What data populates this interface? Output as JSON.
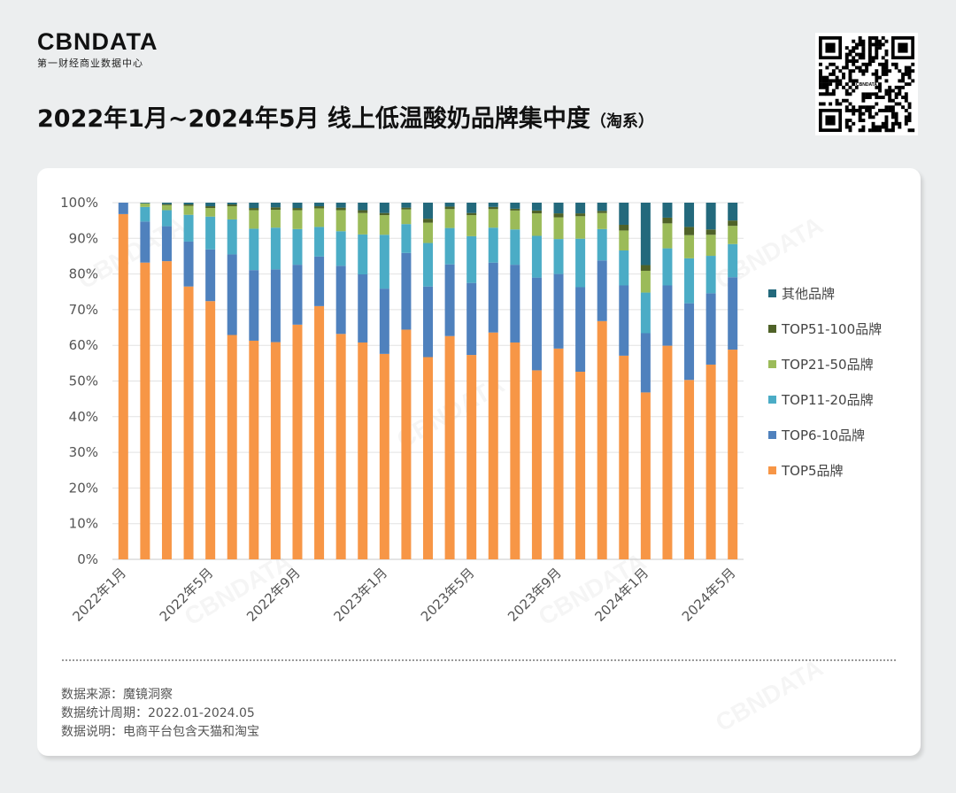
{
  "header": {
    "logo_text": "CBNDATA",
    "logo_subtitle": "第一财经商业数据中心",
    "title": "2022年1月~2024年5月 线上低温酸奶品牌集中度",
    "title_suffix": "（淘系）",
    "qr_label": "CBNDATA"
  },
  "notes": {
    "source": "数据来源：魔镜洞察",
    "period": "数据统计周期：2022.01-2024.05",
    "description": "数据说明：电商平台包含天猫和淘宝"
  },
  "chart_data": {
    "type": "bar",
    "stacked": true,
    "categories": [
      "2022年1月",
      "2022年2月",
      "2022年3月",
      "2022年4月",
      "2022年5月",
      "2022年6月",
      "2022年7月",
      "2022年8月",
      "2022年9月",
      "2022年10月",
      "2022年11月",
      "2022年12月",
      "2023年1月",
      "2023年2月",
      "2023年3月",
      "2023年4月",
      "2023年5月",
      "2023年6月",
      "2023年7月",
      "2023年8月",
      "2023年9月",
      "2023年10月",
      "2023年11月",
      "2023年12月",
      "2024年1月",
      "2024年2月",
      "2024年3月",
      "2024年4月",
      "2024年5月"
    ],
    "x_tick_labels": [
      {
        "index": 0,
        "label": "2022年1月"
      },
      {
        "index": 4,
        "label": "2022年5月"
      },
      {
        "index": 8,
        "label": "2022年9月"
      },
      {
        "index": 12,
        "label": "2023年1月"
      },
      {
        "index": 16,
        "label": "2023年5月"
      },
      {
        "index": 20,
        "label": "2023年9月"
      },
      {
        "index": 24,
        "label": "2024年1月"
      },
      {
        "index": 28,
        "label": "2024年5月"
      }
    ],
    "y_ticks": [
      "0%",
      "10%",
      "20%",
      "30%",
      "40%",
      "50%",
      "60%",
      "70%",
      "80%",
      "90%",
      "100%"
    ],
    "ylim": [
      0,
      100
    ],
    "series": [
      {
        "name": "TOP5品牌",
        "color": "#f79646",
        "values": [
          96.8,
          83.2,
          83.6,
          76.5,
          72.4,
          62.9,
          61.3,
          60.9,
          65.8,
          71.0,
          63.2,
          60.8,
          57.6,
          64.4,
          56.7,
          62.6,
          57.3,
          63.6,
          60.8,
          53.0,
          59.1,
          52.6,
          66.8,
          57.1,
          46.8,
          59.9,
          50.3,
          54.6,
          58.8
        ]
      },
      {
        "name": "TOP6-10品牌",
        "color": "#4f81bd",
        "values": [
          3.2,
          11.5,
          9.8,
          12.6,
          14.5,
          22.6,
          19.8,
          20.4,
          16.8,
          13.9,
          19.1,
          19.1,
          18.3,
          21.5,
          19.8,
          20.1,
          20.2,
          19.6,
          21.8,
          26.0,
          20.9,
          23.7,
          17.0,
          19.7,
          16.6,
          16.9,
          21.5,
          20.0,
          20.3
        ]
      },
      {
        "name": "TOP11-20品牌",
        "color": "#4bacc6",
        "values": [
          0,
          4.1,
          4.5,
          7.5,
          9.2,
          9.8,
          11.6,
          11.7,
          10.0,
          8.3,
          9.7,
          11.2,
          15.1,
          8.1,
          12.2,
          10.2,
          13.1,
          9.8,
          9.9,
          11.7,
          9.8,
          13.6,
          8.8,
          9.8,
          11.4,
          10.4,
          12.6,
          10.5,
          9.3
        ]
      },
      {
        "name": "TOP21-50品牌",
        "color": "#9bbb59",
        "values": [
          0,
          1.0,
          1.4,
          2.5,
          2.4,
          3.7,
          5.2,
          5.0,
          5.3,
          5.2,
          5.9,
          6.0,
          5.5,
          4.1,
          5.7,
          5.3,
          5.9,
          5.2,
          5.3,
          6.3,
          6.1,
          6.3,
          4.5,
          5.6,
          6.1,
          7.0,
          6.5,
          5.9,
          5.1
        ]
      },
      {
        "name": "TOP51-100品牌",
        "color": "#4f6228",
        "values": [
          0,
          0,
          0.3,
          0.4,
          0.5,
          0.5,
          0.6,
          0.7,
          0.6,
          0.6,
          0.7,
          0.8,
          0.6,
          0.5,
          1.1,
          0.7,
          0.6,
          0.6,
          0.5,
          0.8,
          1.1,
          0.8,
          0.6,
          1.6,
          1.6,
          1.6,
          2.3,
          1.5,
          1.5
        ]
      },
      {
        "name": "其他品牌",
        "color": "#23697c",
        "values": [
          0,
          0.2,
          0.4,
          0.5,
          1.0,
          0.5,
          1.5,
          1.3,
          1.5,
          1.0,
          1.4,
          2.1,
          2.9,
          1.4,
          4.5,
          1.1,
          2.9,
          1.2,
          1.7,
          2.2,
          3.0,
          3.0,
          2.3,
          6.2,
          17.5,
          4.2,
          6.8,
          7.5,
          5.0
        ]
      }
    ],
    "legend_order": [
      "其他品牌",
      "TOP51-100品牌",
      "TOP21-50品牌",
      "TOP11-20品牌",
      "TOP6-10品牌",
      "TOP5品牌"
    ],
    "legend_position": "right"
  }
}
